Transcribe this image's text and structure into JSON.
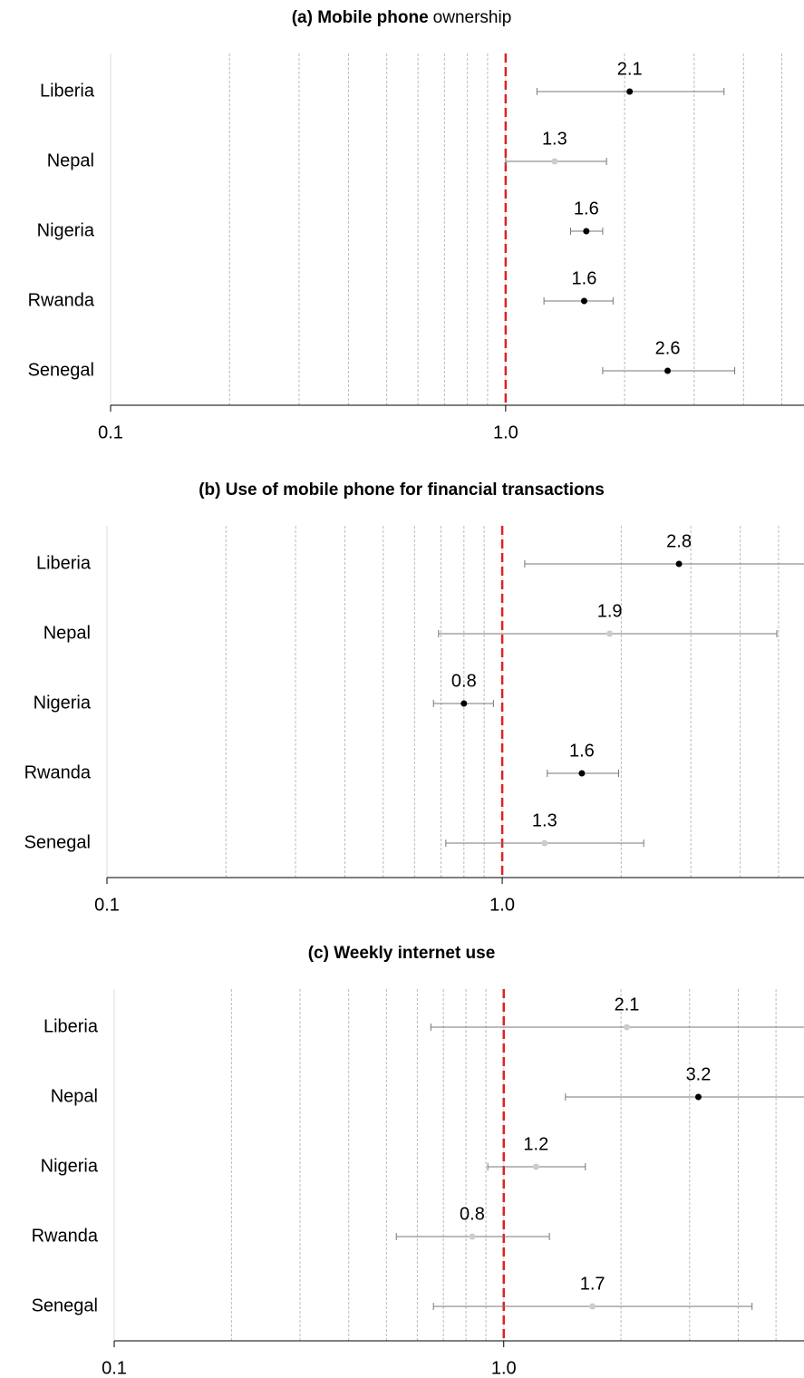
{
  "chart_data": [
    {
      "type": "forest",
      "title_parts": [
        {
          "text": "(a) Mobile phone",
          "bold": true
        },
        {
          "text": "ownership",
          "bold": false
        }
      ],
      "categories": [
        "Liberia",
        "Nepal",
        "Nigeria",
        "Rwanda",
        "Senegal"
      ],
      "series": [
        {
          "values": [
            2.06,
            1.33,
            1.6,
            1.58,
            2.57
          ],
          "value_labels": [
            "2.1",
            "1.3",
            "1.6",
            "1.6",
            "2.6"
          ],
          "lower": [
            1.2,
            1.0,
            1.46,
            1.25,
            1.76
          ],
          "upper": [
            3.57,
            1.8,
            1.76,
            1.87,
            3.8
          ],
          "colors": [
            "#000000",
            "#cccccc",
            "#000000",
            "#000000",
            "#000000"
          ]
        }
      ],
      "xlim": [
        0.1,
        5.69
      ],
      "xscale": "log",
      "xticks": [
        0.1,
        {
          "value": 1,
          "label": "1.0"
        }
      ],
      "minor_ticks": [
        0.2,
        0.3,
        0.4,
        0.5,
        0.6,
        0.7,
        0.8,
        0.9,
        2,
        3,
        4,
        5
      ],
      "ref_line": 1,
      "ref_color": "#dd2222"
    },
    {
      "type": "forest",
      "title_parts": [
        {
          "text": "(b) Use of mobile phone for financial transactions",
          "bold": true
        }
      ],
      "categories": [
        "Liberia",
        "Nepal",
        "Nigeria",
        "Rwanda",
        "Senegal"
      ],
      "series": [
        {
          "values": [
            2.8,
            1.87,
            0.8,
            1.59,
            1.28
          ],
          "value_labels": [
            "2.8",
            "1.9",
            "0.8",
            "1.6",
            "1.3"
          ],
          "lower": [
            1.14,
            0.69,
            0.67,
            1.3,
            0.72
          ],
          "upper": [
            6.2,
            4.95,
            0.95,
            1.97,
            2.28
          ],
          "colors": [
            "#000000",
            "#cccccc",
            "#000000",
            "#000000",
            "#cccccc"
          ]
        }
      ],
      "xlim": [
        0.1,
        5.8
      ],
      "xscale": "log",
      "xticks": [
        0.1,
        {
          "value": 1,
          "label": "1.0"
        }
      ],
      "minor_ticks": [
        0.2,
        0.3,
        0.4,
        0.5,
        0.6,
        0.7,
        0.8,
        0.9,
        2,
        3,
        4,
        5
      ],
      "ref_line": 1,
      "ref_color": "#dd2222"
    },
    {
      "type": "forest",
      "title_parts": [
        {
          "text": "(c) Weekly internet use",
          "bold": true
        }
      ],
      "categories": [
        "Liberia",
        "Nepal",
        "Nigeria",
        "Rwanda",
        "Senegal"
      ],
      "series": [
        {
          "values": [
            2.07,
            3.16,
            1.21,
            0.83,
            1.69
          ],
          "value_labels": [
            "2.1",
            "3.2",
            "1.2",
            "0.8",
            "1.7"
          ],
          "lower": [
            0.65,
            1.44,
            0.91,
            0.53,
            0.66
          ],
          "upper": [
            6.5,
            7.0,
            1.62,
            1.31,
            4.34
          ],
          "colors": [
            "#cccccc",
            "#000000",
            "#cccccc",
            "#cccccc",
            "#cccccc"
          ]
        }
      ],
      "xlim": [
        0.1,
        5.9
      ],
      "xscale": "log",
      "xticks": [
        0.1,
        {
          "value": 1,
          "label": "1.0"
        }
      ],
      "minor_ticks": [
        0.2,
        0.3,
        0.4,
        0.5,
        0.6,
        0.7,
        0.8,
        0.9,
        2,
        3,
        4,
        5
      ],
      "ref_line": 1,
      "ref_color": "#dd2222"
    }
  ]
}
